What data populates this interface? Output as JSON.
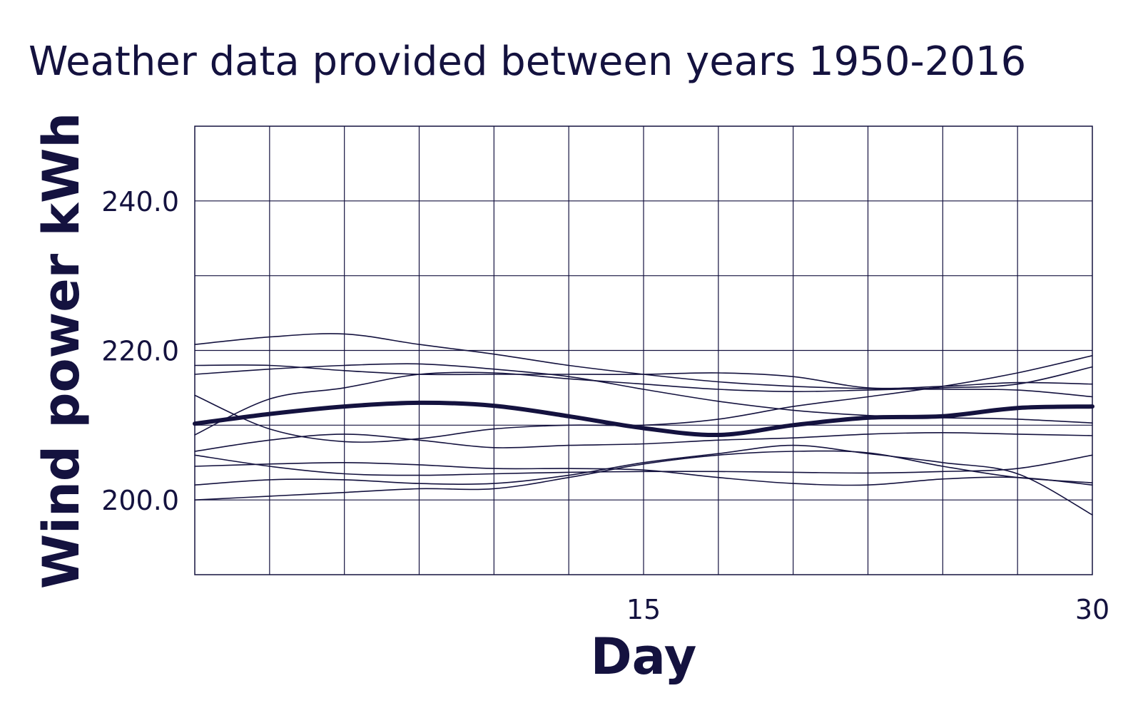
{
  "chart_data": {
    "type": "line",
    "title": "Weather data provided between years 1950-2016",
    "xlabel": "Day",
    "ylabel": "Wind power kWh",
    "xlim": [
      0,
      30
    ],
    "ylim": [
      190,
      250
    ],
    "x_ticks": [
      {
        "value": 15,
        "label": "15"
      },
      {
        "value": 30,
        "label": "30"
      }
    ],
    "y_ticks": [
      {
        "value": 200,
        "label": "200.0"
      },
      {
        "value": 220,
        "label": "220.0"
      },
      {
        "value": 240,
        "label": "240.0"
      }
    ],
    "grid": true,
    "line_color": "#14123f",
    "x": [
      0,
      2.5,
      5,
      7.5,
      10,
      12.5,
      15,
      17.5,
      20,
      22.5,
      25,
      27.5,
      30
    ],
    "series": [
      {
        "values": [
          210.2,
          211.5,
          212.5,
          213.0,
          212.6,
          211.2,
          209.6,
          208.7,
          210.0,
          211.0,
          211.2,
          212.3,
          212.5
        ],
        "emphasis": true
      },
      {
        "values": [
          220.8,
          221.8,
          222.2,
          220.8,
          219.5,
          218.0,
          216.8,
          215.8,
          215.2,
          214.9,
          214.8,
          214.7,
          213.8
        ]
      },
      {
        "values": [
          218.0,
          218.0,
          217.3,
          216.8,
          216.8,
          216.8,
          216.8,
          217.0,
          216.5,
          215.0,
          215.2,
          215.7,
          215.5
        ]
      },
      {
        "values": [
          216.8,
          217.5,
          218.0,
          218.2,
          217.5,
          216.5,
          214.8,
          213.2,
          212.0,
          211.3,
          211.0,
          210.8,
          210.3
        ]
      },
      {
        "values": [
          214.0,
          209.5,
          207.8,
          208.2,
          209.5,
          210.0,
          210.0,
          210.8,
          212.5,
          213.8,
          215.2,
          217.0,
          219.3
        ]
      },
      {
        "values": [
          208.7,
          213.5,
          215.0,
          216.8,
          217.0,
          216.2,
          215.5,
          214.8,
          214.5,
          214.7,
          215.0,
          215.5,
          217.8
        ]
      },
      {
        "values": [
          206.5,
          208.0,
          208.8,
          208.0,
          207.0,
          207.3,
          207.5,
          208.0,
          208.3,
          208.8,
          209.0,
          208.8,
          208.6
        ]
      },
      {
        "values": [
          204.5,
          204.8,
          205.0,
          204.7,
          204.2,
          204.2,
          204.0,
          203.0,
          202.2,
          202.0,
          202.8,
          203.0,
          202.0
        ]
      },
      {
        "values": [
          206.0,
          204.5,
          203.5,
          203.3,
          203.5,
          203.7,
          203.8,
          203.8,
          203.7,
          203.6,
          203.8,
          204.2,
          206.0
        ]
      },
      {
        "values": [
          202.0,
          202.7,
          202.7,
          202.2,
          202.2,
          203.3,
          205.0,
          206.2,
          207.3,
          206.2,
          205.0,
          203.5,
          198.0
        ]
      },
      {
        "values": [
          200.0,
          200.5,
          201.0,
          201.5,
          201.5,
          203.0,
          204.8,
          206.0,
          206.5,
          206.3,
          204.5,
          203.0,
          202.3
        ]
      }
    ]
  }
}
